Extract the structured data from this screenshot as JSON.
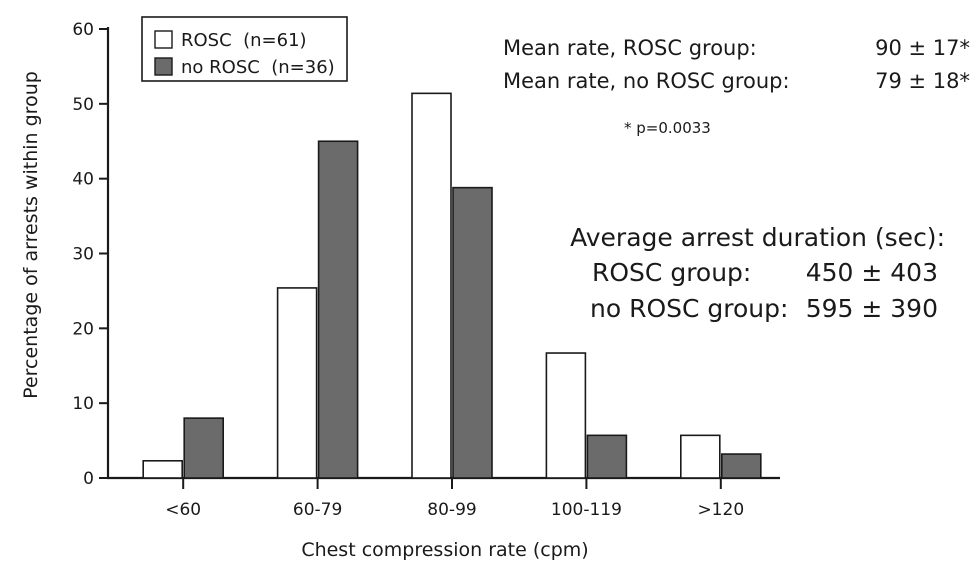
{
  "chart_data": {
    "type": "bar",
    "categories": [
      "<60",
      "60-79",
      "80-99",
      "100-119",
      ">120"
    ],
    "series": [
      {
        "name": "ROSC  (n=61)",
        "color": "#ffffff",
        "values": [
          2.3,
          25.4,
          51.4,
          16.7,
          5.7
        ]
      },
      {
        "name": "no ROSC  (n=36)",
        "color": "#6b6b6b",
        "values": [
          8.0,
          45.0,
          38.8,
          5.7,
          3.2
        ]
      }
    ],
    "xlabel": "Chest compression rate (cpm)",
    "ylabel": "Percentage of arrests within group",
    "ylim": [
      0,
      60
    ],
    "yticks": [
      "0",
      "10",
      "20",
      "30",
      "40",
      "50",
      "60"
    ],
    "grid": false,
    "legend_position": "top-left",
    "annotations": {
      "mean_rosc_label": "Mean rate, ROSC group:",
      "mean_rosc_value": "90 ± 17*",
      "mean_norosc_label": "Mean rate, no ROSC group:",
      "mean_norosc_value": "79 ± 18*",
      "pvalue": "* p=0.0033",
      "duration_title": "Average arrest duration (sec):",
      "duration_rosc_label": "ROSC group:",
      "duration_rosc_value": "450 ± 403",
      "duration_norosc_label": "no ROSC group:",
      "duration_norosc_value": "595 ± 390"
    }
  }
}
